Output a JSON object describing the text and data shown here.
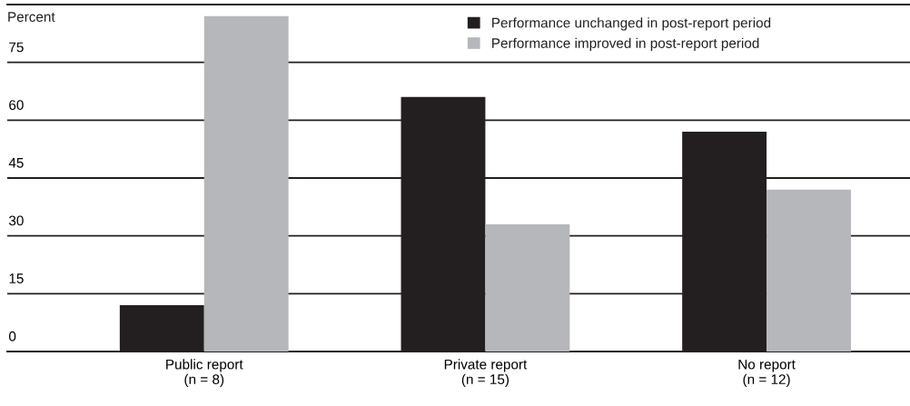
{
  "chart_data": {
    "type": "bar",
    "ylabel": "Percent",
    "categories": [
      "Public report\n(n = 8)",
      "Private report\n(n = 15)",
      "No report\n(n = 12)"
    ],
    "series": [
      {
        "name": "Performance unchanged in post-report period",
        "color": "#231f20",
        "values": [
          12,
          66,
          57
        ]
      },
      {
        "name": "Performance improved in post-report period",
        "color": "#b6b7ba",
        "values": [
          87,
          33,
          42
        ]
      }
    ],
    "ylim": [
      0,
      90
    ],
    "yticks": [
      0,
      15,
      30,
      45,
      60,
      75
    ],
    "grid": "y",
    "legend": "top right"
  }
}
